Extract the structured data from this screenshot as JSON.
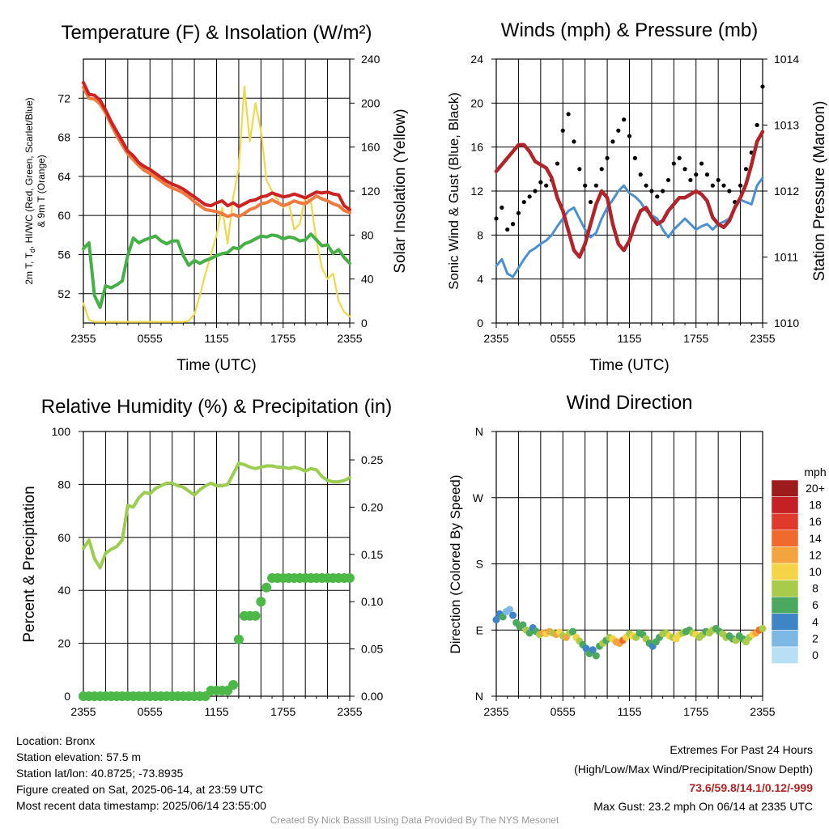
{
  "chart_data": [
    {
      "type": "line",
      "title": "Temperature (F) & Insolation (W/m²)",
      "xlabel": "Time (UTC)",
      "ylabel": "2m T, T_d, HI/WC (Red, Green, Scarlet/Blue) & 9m T (Orange)",
      "ylabel_lines": [
        "2m T, T",
        "d",
        ", HI/WC (Red, Green, Scarlet/Blue)",
        "& 9m T (Orange)"
      ],
      "y2label": "Solar Insolation (Yellow)",
      "x_tick_labels": [
        "2355",
        "0555",
        "1155",
        "1755",
        "2355"
      ],
      "ylim": [
        49,
        76
      ],
      "y_ticks": [
        52,
        56,
        60,
        64,
        68,
        72
      ],
      "y2lim": [
        0,
        240
      ],
      "y2_ticks": [
        0,
        40,
        80,
        120,
        160,
        200,
        240
      ],
      "grid": true,
      "x_hours": [
        0,
        0.5,
        1,
        1.5,
        2,
        2.5,
        3,
        3.5,
        4,
        4.5,
        5,
        5.5,
        6,
        6.5,
        7,
        7.5,
        8,
        8.5,
        9,
        9.5,
        10,
        10.5,
        11,
        11.5,
        12,
        12.5,
        13,
        13.5,
        14,
        14.5,
        15,
        15.5,
        16,
        16.5,
        17,
        17.5,
        18,
        18.5,
        19,
        19.5,
        20,
        20.5,
        21,
        21.5,
        22,
        22.5,
        23,
        23.5,
        24
      ],
      "series": [
        {
          "color": "#cc2222",
          "axis": "left",
          "values": [
            73.6,
            72.4,
            72.3,
            71.8,
            70.8,
            69.6,
            68.6,
            67.6,
            66.6,
            66.1,
            65.4,
            65.0,
            64.7,
            64.3,
            63.9,
            63.5,
            63.2,
            63.0,
            62.7,
            62.3,
            61.9,
            61.5,
            61.1,
            61.0,
            61.3,
            61.5,
            61.0,
            61.3,
            60.9,
            61.2,
            61.5,
            61.6,
            61.9,
            62.0,
            62.3,
            62.1,
            61.9,
            62.0,
            62.2,
            62.0,
            61.8,
            62.1,
            62.4,
            62.3,
            62.4,
            62.2,
            62.1,
            61.0,
            60.6
          ]
        },
        {
          "color": "#f07b3f",
          "axis": "left",
          "values": [
            73.1,
            72.0,
            71.9,
            71.4,
            70.5,
            69.3,
            68.2,
            67.2,
            66.3,
            65.7,
            65.1,
            64.6,
            64.3,
            63.9,
            63.5,
            63.1,
            62.8,
            62.6,
            62.3,
            61.9,
            61.4,
            61.0,
            60.6,
            60.5,
            60.4,
            60.2,
            59.9,
            60.1,
            59.9,
            60.2,
            60.6,
            60.8,
            61.2,
            61.3,
            61.6,
            61.3,
            61.0,
            61.2,
            61.5,
            61.3,
            61.2,
            61.6,
            62.0,
            61.7,
            61.5,
            61.2,
            61.0,
            60.5,
            60.3
          ]
        },
        {
          "color": "#45b045",
          "axis": "left",
          "values": [
            56.6,
            57.2,
            51.8,
            50.6,
            52.8,
            52.6,
            52.9,
            53.3,
            55.9,
            57.7,
            57.2,
            57.5,
            57.7,
            57.9,
            57.4,
            57.1,
            57.4,
            57.4,
            55.9,
            54.9,
            55.4,
            55.1,
            55.4,
            55.6,
            55.9,
            56.1,
            56.2,
            56.7,
            56.6,
            57.1,
            57.3,
            57.6,
            57.9,
            57.8,
            58.0,
            57.9,
            57.6,
            57.8,
            57.7,
            57.4,
            57.5,
            58.1,
            57.5,
            56.9,
            57.0,
            56.1,
            56.5,
            55.7,
            55.1
          ]
        },
        {
          "color": "#f0d84a",
          "axis": "right",
          "values": [
            18,
            3,
            1,
            1,
            1,
            1,
            1,
            1,
            1,
            1,
            1,
            1,
            1,
            1,
            1,
            1,
            1,
            1,
            1,
            2,
            8,
            25,
            45,
            62,
            80,
            105,
            72,
            115,
            140,
            215,
            165,
            200,
            175,
            130,
            120,
            112,
            105,
            110,
            85,
            90,
            115,
            110,
            75,
            50,
            40,
            45,
            20,
            10,
            6
          ]
        }
      ]
    },
    {
      "type": "line",
      "title": "Winds (mph) & Pressure (mb)",
      "xlabel": "Time (UTC)",
      "ylabel": "Sonic Wind & Gust (Blue, Black)",
      "y2label": "Station Pressure (Maroon)",
      "x_tick_labels": [
        "2355",
        "0555",
        "1155",
        "1755",
        "2355"
      ],
      "ylim": [
        0,
        24
      ],
      "y_ticks": [
        0,
        4,
        8,
        12,
        16,
        20,
        24
      ],
      "y2lim": [
        1010,
        1014
      ],
      "y2_ticks": [
        1010,
        1011,
        1012,
        1013,
        1014
      ],
      "grid": true,
      "x_hours": [
        0,
        0.5,
        1,
        1.5,
        2,
        2.5,
        3,
        3.5,
        4,
        4.5,
        5,
        5.5,
        6,
        6.5,
        7,
        7.5,
        8,
        8.5,
        9,
        9.5,
        10,
        10.5,
        11,
        11.5,
        12,
        12.5,
        13,
        13.5,
        14,
        14.5,
        15,
        15.5,
        16,
        16.5,
        17,
        17.5,
        18,
        18.5,
        19,
        19.5,
        20,
        20.5,
        21,
        21.5,
        22,
        22.5,
        23,
        23.5,
        24
      ],
      "series": [
        {
          "color": "#4a90d0",
          "axis": "left",
          "name": "Sonic Wind",
          "values": [
            5.2,
            5.8,
            4.5,
            4.2,
            5.0,
            5.8,
            6.5,
            6.8,
            7.2,
            7.5,
            8.0,
            8.8,
            9.5,
            10.2,
            10.5,
            9.5,
            8.5,
            7.8,
            8.2,
            9.5,
            10.5,
            11.2,
            12.0,
            12.5,
            11.8,
            11.5,
            11.0,
            10.2,
            9.8,
            9.5,
            8.5,
            7.8,
            8.5,
            9.0,
            9.5,
            9.0,
            8.5,
            8.8,
            9.0,
            8.5,
            9.0,
            9.2,
            9.5,
            10.5,
            11.2,
            11.0,
            10.8,
            12.5,
            13.2
          ]
        },
        {
          "color": "#b0242a",
          "axis": "right",
          "name": "Station Pressure",
          "values": [
            1012.3,
            1012.4,
            1012.5,
            1012.6,
            1012.7,
            1012.7,
            1012.6,
            1012.45,
            1012.4,
            1012.35,
            1012.2,
            1011.9,
            1011.7,
            1011.4,
            1011.1,
            1011.0,
            1011.2,
            1011.5,
            1011.8,
            1012.0,
            1011.9,
            1011.5,
            1011.2,
            1011.1,
            1011.25,
            1011.5,
            1011.7,
            1011.75,
            1011.6,
            1011.5,
            1011.55,
            1011.7,
            1011.8,
            1011.9,
            1011.9,
            1011.95,
            1012.0,
            1011.95,
            1011.85,
            1011.6,
            1011.5,
            1011.45,
            1011.55,
            1011.75,
            1011.9,
            1012.1,
            1012.4,
            1012.75,
            1012.9
          ]
        },
        {
          "color": "#000000",
          "axis": "left",
          "name": "Gust",
          "style": "dots",
          "values": [
            9.5,
            10.5,
            8.5,
            9.0,
            10.0,
            11.0,
            11.5,
            12.0,
            12.8,
            12.5,
            13.0,
            14.5,
            17.5,
            19.0,
            16.5,
            14.0,
            12.5,
            11.0,
            12.5,
            14.0,
            15.0,
            16.5,
            17.5,
            18.5,
            17.0,
            15.0,
            13.5,
            12.5,
            12.0,
            11.5,
            12.0,
            13.0,
            14.5,
            15.0,
            14.0,
            13.0,
            13.5,
            14.5,
            13.5,
            12.5,
            13.0,
            12.5,
            12.0,
            11.0,
            12.5,
            14.0,
            15.5,
            18.0,
            21.5
          ]
        }
      ]
    },
    {
      "type": "line",
      "title": "Relative Humidity (%) & Precipitation (in)",
      "ylabel": "Percent & Precipitation",
      "x_tick_labels": [
        "2355",
        "0555",
        "1155",
        "1755",
        "2355"
      ],
      "ylim": [
        0,
        100
      ],
      "y_ticks": [
        0,
        20,
        40,
        60,
        80,
        100
      ],
      "y2lim": [
        0,
        0.28
      ],
      "y2_ticks": [
        "0.00",
        "0.05",
        "0.10",
        "0.15",
        "0.20",
        "0.25"
      ],
      "grid": true,
      "x_hours": [
        0,
        0.5,
        1,
        1.5,
        2,
        2.5,
        3,
        3.5,
        4,
        4.5,
        5,
        5.5,
        6,
        6.5,
        7,
        7.5,
        8,
        8.5,
        9,
        9.5,
        10,
        10.5,
        11,
        11.5,
        12,
        12.5,
        13,
        13.5,
        14,
        14.5,
        15,
        15.5,
        16,
        16.5,
        17,
        17.5,
        18,
        18.5,
        19,
        19.5,
        20,
        20.5,
        21,
        21.5,
        22,
        22.5,
        23,
        23.5,
        24
      ],
      "series": [
        {
          "color": "#9acd50",
          "axis": "left",
          "name": "Relative Humidity",
          "values": [
            55.8,
            59.0,
            52.0,
            48.5,
            54.0,
            55.5,
            56.5,
            59.0,
            72.0,
            71.5,
            75.0,
            77.0,
            76.5,
            78.5,
            79.5,
            80.5,
            80.5,
            79.5,
            79.0,
            77.5,
            76.0,
            78.0,
            79.5,
            80.5,
            79.5,
            79.5,
            80.0,
            84.0,
            88.0,
            87.5,
            86.5,
            86.0,
            86.5,
            87.0,
            87.0,
            86.5,
            86.5,
            86.0,
            86.5,
            86.0,
            85.0,
            86.0,
            85.5,
            83.0,
            81.5,
            81.0,
            81.0,
            81.5,
            82.5
          ]
        },
        {
          "color": "#4cb848",
          "axis": "right",
          "name": "Precipitation",
          "style": "dots",
          "values": [
            0,
            0,
            0,
            0,
            0,
            0,
            0,
            0,
            0,
            0,
            0,
            0,
            0,
            0,
            0,
            0,
            0,
            0,
            0,
            0,
            0,
            0,
            0,
            0.006,
            0.006,
            0.006,
            0.006,
            0.012,
            0.06,
            0.085,
            0.085,
            0.085,
            0.1,
            0.115,
            0.125,
            0.125,
            0.125,
            0.125,
            0.125,
            0.125,
            0.125,
            0.125,
            0.125,
            0.125,
            0.125,
            0.125,
            0.125,
            0.125,
            0.125
          ]
        }
      ]
    },
    {
      "type": "scatter",
      "title": "Wind Direction",
      "ylabel": "Direction (Colored By Speed)",
      "x_tick_labels": [
        "2355",
        "0555",
        "1155",
        "1755",
        "2355"
      ],
      "y_tick_labels": [
        "N",
        "E",
        "S",
        "W",
        "N"
      ],
      "ylim": [
        0,
        360
      ],
      "grid": true,
      "colorbar": {
        "title": "mph",
        "labels": [
          "20+",
          "18",
          "16",
          "14",
          "12",
          "10",
          "8",
          "6",
          "4",
          "2",
          "0"
        ],
        "colors": [
          "#9e1b1b",
          "#c42026",
          "#e03a2c",
          "#f06a2d",
          "#f5a33f",
          "#f5d547",
          "#a8cc4a",
          "#4ca85e",
          "#3f84c5",
          "#7db8e4",
          "#b8e0f5"
        ]
      },
      "points": [
        [
          0.0,
          104,
          4
        ],
        [
          0.3,
          112,
          4
        ],
        [
          0.6,
          108,
          6
        ],
        [
          0.9,
          115,
          3
        ],
        [
          1.2,
          118,
          2
        ],
        [
          1.5,
          110,
          4
        ],
        [
          1.8,
          100,
          6
        ],
        [
          2.1,
          95,
          7
        ],
        [
          2.4,
          97,
          6
        ],
        [
          2.7,
          90,
          8
        ],
        [
          3.0,
          86,
          6
        ],
        [
          3.3,
          93,
          5
        ],
        [
          3.6,
          88,
          7
        ],
        [
          3.9,
          84,
          9
        ],
        [
          4.2,
          86,
          12
        ],
        [
          4.5,
          85,
          10
        ],
        [
          4.8,
          88,
          12
        ],
        [
          5.1,
          86,
          9
        ],
        [
          5.4,
          84,
          13
        ],
        [
          5.7,
          87,
          10
        ],
        [
          6.0,
          82,
          9
        ],
        [
          6.3,
          80,
          12
        ],
        [
          6.6,
          86,
          9
        ],
        [
          6.9,
          88,
          7
        ],
        [
          7.2,
          80,
          10
        ],
        [
          7.5,
          75,
          8
        ],
        [
          7.8,
          70,
          6
        ],
        [
          8.1,
          65,
          4
        ],
        [
          8.4,
          58,
          6
        ],
        [
          8.7,
          63,
          5
        ],
        [
          9.0,
          55,
          7
        ],
        [
          9.3,
          68,
          6
        ],
        [
          9.6,
          72,
          8
        ],
        [
          9.9,
          76,
          6
        ],
        [
          10.2,
          80,
          9
        ],
        [
          10.5,
          78,
          11
        ],
        [
          10.8,
          74,
          12
        ],
        [
          11.1,
          72,
          13
        ],
        [
          11.4,
          76,
          14
        ],
        [
          11.7,
          80,
          11
        ],
        [
          12.0,
          85,
          9
        ],
        [
          12.3,
          82,
          10
        ],
        [
          12.6,
          80,
          8
        ],
        [
          12.9,
          86,
          7
        ],
        [
          13.2,
          84,
          6
        ],
        [
          13.5,
          78,
          8
        ],
        [
          13.8,
          72,
          6
        ],
        [
          14.1,
          68,
          5
        ],
        [
          14.4,
          74,
          7
        ],
        [
          14.7,
          80,
          6
        ],
        [
          15.0,
          85,
          8
        ],
        [
          15.3,
          86,
          9
        ],
        [
          15.6,
          82,
          10
        ],
        [
          15.9,
          80,
          9
        ],
        [
          16.2,
          78,
          11
        ],
        [
          16.5,
          84,
          10
        ],
        [
          16.8,
          86,
          9
        ],
        [
          17.1,
          88,
          7
        ],
        [
          17.4,
          90,
          6
        ],
        [
          17.7,
          86,
          8
        ],
        [
          18.0,
          84,
          10
        ],
        [
          18.3,
          80,
          9
        ],
        [
          18.6,
          84,
          8
        ],
        [
          18.9,
          88,
          7
        ],
        [
          19.2,
          86,
          9
        ],
        [
          19.5,
          90,
          8
        ],
        [
          19.8,
          92,
          6
        ],
        [
          20.1,
          88,
          7
        ],
        [
          20.4,
          85,
          8
        ],
        [
          20.7,
          80,
          9
        ],
        [
          21.0,
          82,
          7
        ],
        [
          21.3,
          78,
          6
        ],
        [
          21.6,
          76,
          8
        ],
        [
          21.9,
          82,
          7
        ],
        [
          22.2,
          78,
          6
        ],
        [
          22.5,
          74,
          8
        ],
        [
          22.8,
          80,
          9
        ],
        [
          23.1,
          84,
          11
        ],
        [
          23.4,
          86,
          13
        ],
        [
          23.7,
          90,
          14
        ],
        [
          24.0,
          92,
          8
        ]
      ]
    }
  ],
  "footer": {
    "location": "Location: Bronx",
    "elevation": "Station elevation: 57.5 m",
    "latlon": "Station lat/lon: 40.8725; -73.8935",
    "created": "Figure created on Sat, 2025-06-14, at 23:59 UTC",
    "recent": "Most recent data timestamp: 2025/06/14 23:55:00",
    "extremes_title": "Extremes For Past 24 Hours",
    "extremes_desc": "(High/Low/Max Wind/Precipitation/Snow Depth)",
    "extremes_values": "73.6/59.8/14.1/0.12/-999",
    "max_gust": "Max Gust: 23.2 mph On 06/14 at 2335 UTC",
    "credit": "Created By Nick Bassill Using Data Provided By The NYS Mesonet"
  }
}
